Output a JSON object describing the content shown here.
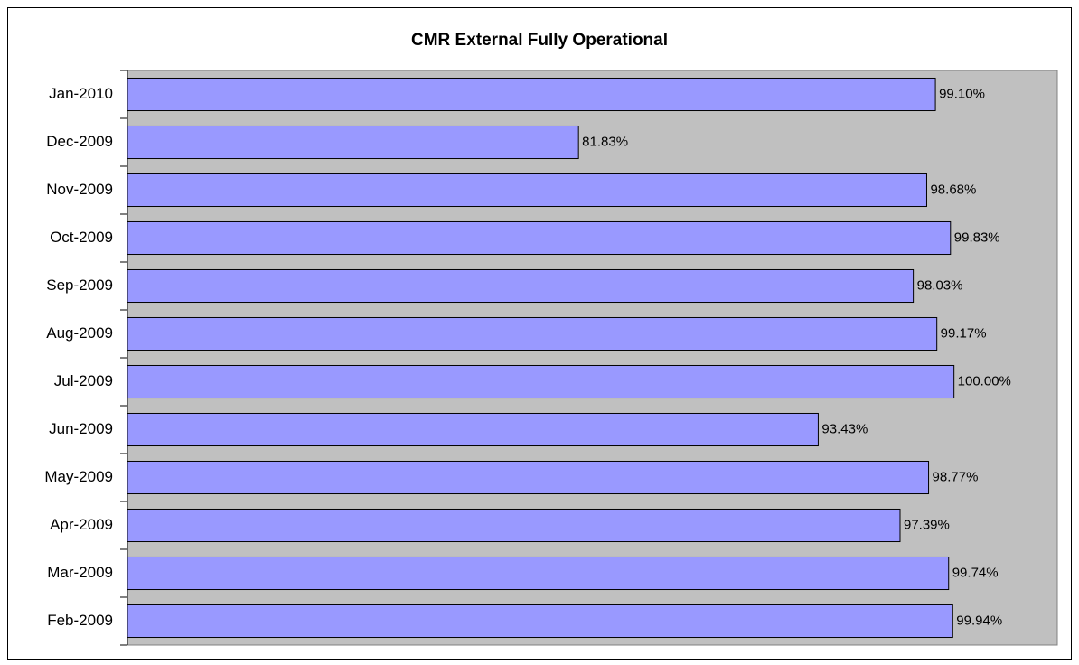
{
  "chart_data": {
    "type": "bar",
    "orientation": "horizontal",
    "title": "CMR  External Fully Operational",
    "categories": [
      "Jan-2010",
      "Dec-2009",
      "Nov-2009",
      "Oct-2009",
      "Sep-2009",
      "Aug-2009",
      "Jul-2009",
      "Jun-2009",
      "May-2009",
      "Apr-2009",
      "Mar-2009",
      "Feb-2009"
    ],
    "values": [
      99.1,
      81.83,
      98.68,
      99.83,
      98.03,
      99.17,
      100,
      93.43,
      98.77,
      97.39,
      99.74,
      99.94
    ],
    "value_labels": [
      "99.10%",
      "81.83%",
      "98.68%",
      "99.83%",
      "98.03%",
      "99.17%",
      "100.00%",
      "93.43%",
      "98.77%",
      "97.39%",
      "99.74%",
      "99.94%"
    ],
    "color": "#9999ff",
    "plot_background": "#c0c0c0",
    "xlim": [
      60,
      105
    ]
  }
}
